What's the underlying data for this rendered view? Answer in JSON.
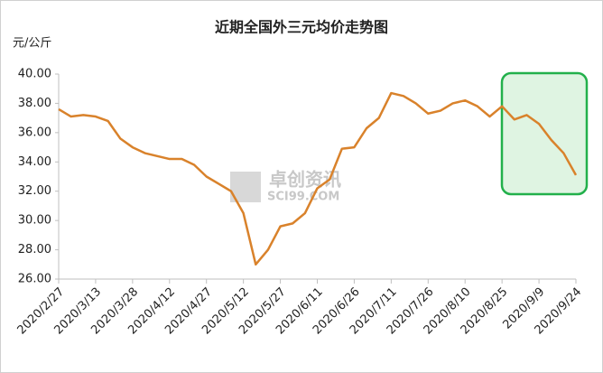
{
  "chart_data": {
    "type": "line",
    "title": "近期全国外三元均价走势图",
    "y_label": "元/公斤",
    "watermark": "卓创资讯",
    "watermark_url": "SCI99.COM",
    "categories": [
      "2020/2/27",
      null,
      null,
      "2020/3/13",
      null,
      null,
      "2020/3/28",
      null,
      null,
      "2020/4/12",
      null,
      null,
      "2020/4/27",
      null,
      null,
      "2020/5/12",
      null,
      null,
      "2020/5/27",
      null,
      null,
      "2020/6/11",
      null,
      null,
      "2020/6/26",
      null,
      null,
      "2020/7/11",
      null,
      null,
      "2020/7/26",
      null,
      null,
      "2020/8/10",
      null,
      null,
      "2020/8/25",
      null,
      null,
      "2020/9/9",
      null,
      null,
      "2020/9/24"
    ],
    "values": [
      37.6,
      37.1,
      37.2,
      37.1,
      36.8,
      35.6,
      35.0,
      34.6,
      34.4,
      34.2,
      34.2,
      33.8,
      33.0,
      32.5,
      32.0,
      30.5,
      27.0,
      28.0,
      29.6,
      29.8,
      30.5,
      32.2,
      32.8,
      34.9,
      35.0,
      36.3,
      37.0,
      38.7,
      38.5,
      38.0,
      37.3,
      37.5,
      38.0,
      38.2,
      37.8,
      37.1,
      37.8,
      36.9,
      37.2,
      36.6,
      35.5,
      34.6,
      33.1
    ],
    "color": "#d9822b",
    "ylim": [
      26,
      40
    ],
    "yticks": [
      {
        "value": 26,
        "label": "26.00"
      },
      {
        "value": 28,
        "label": "28.00"
      },
      {
        "value": 30,
        "label": "30.00"
      },
      {
        "value": 32,
        "label": "32.00"
      },
      {
        "value": 34,
        "label": "34.00"
      },
      {
        "value": 36,
        "label": "36.00"
      },
      {
        "value": 38,
        "label": "38.00"
      },
      {
        "value": 40,
        "label": "40.00"
      }
    ],
    "grid": false
  }
}
